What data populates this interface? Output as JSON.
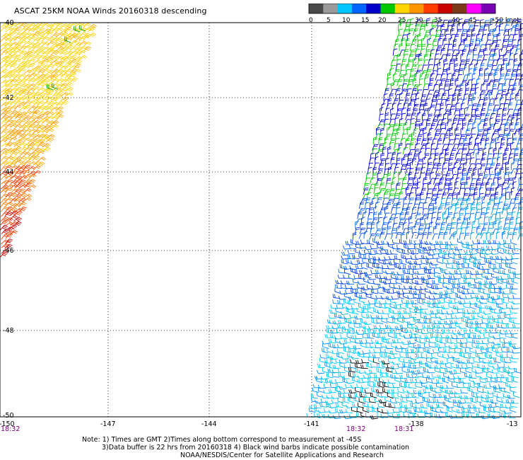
{
  "title": "ASCAT 25KM NOAA Winds 20160318 descending",
  "legend": {
    "stops": [
      {
        "label": "0",
        "color": "#4a4a4a"
      },
      {
        "label": "5",
        "color": "#9a9a9a"
      },
      {
        "label": "10",
        "color": "#00c8ff"
      },
      {
        "label": "15",
        "color": "#0064ff"
      },
      {
        "label": "20",
        "color": "#0000c8"
      },
      {
        "label": "",
        "color": "#00c800"
      },
      {
        "label": "25",
        "color": "#ffd400"
      },
      {
        "label": "30",
        "color": "#ff9600"
      },
      {
        "label": "35",
        "color": "#ff3c00"
      },
      {
        "label": "40",
        "color": "#c80000"
      },
      {
        "label": "45",
        "color": "#7a3a1a"
      },
      {
        "label": "",
        "color": "#ff00ff"
      },
      {
        "label": ">50 knots",
        "color": "#7a00b4"
      }
    ],
    "tick_labels": [
      "0",
      "5",
      "10",
      "15",
      "20",
      "25",
      "30",
      "35",
      "40",
      "45",
      ">50 knots"
    ]
  },
  "map": {
    "lat_labels": [
      "-40",
      "-42",
      "-44",
      "-46",
      "-48",
      "-50"
    ],
    "lon_labels": [
      "-150",
      "-147",
      "-144",
      "-141",
      "-138",
      "-13"
    ],
    "time_labels": [
      {
        "text": "18:32",
        "anchor": "left-edge"
      },
      {
        "text": "18:32",
        "anchor": "right-swath-west"
      },
      {
        "text": "18:31",
        "anchor": "right-swath-mid"
      }
    ],
    "grid": "dotted",
    "swaths": [
      {
        "name": "western swath",
        "colors": [
          "#ffd400",
          "#ff9600",
          "#ff3c00",
          "#c80000",
          "#00c800"
        ]
      },
      {
        "name": "eastern swath",
        "colors": [
          "#0000c8",
          "#0064ff",
          "#00c8ff",
          "#00c800",
          "#000000"
        ]
      }
    ]
  },
  "notes": {
    "line1": "Note: 1) Times are GMT 2)Times along bottom correspond to measurement at -45S",
    "line2": "3)Data buffer is 22 hrs from 20160318 4) Black wind barbs indicate possible contamination",
    "line3": "NOAA/NESDIS/Center for Satellite Applications and Research"
  }
}
